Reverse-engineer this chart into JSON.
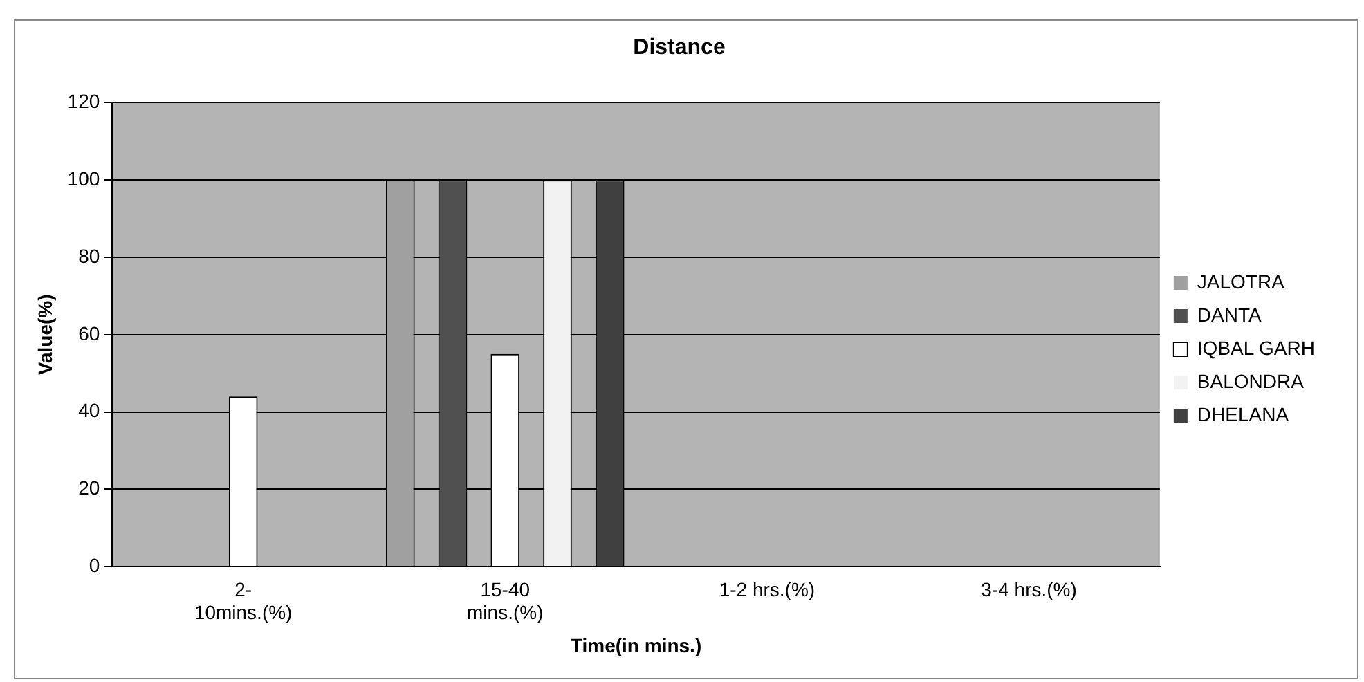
{
  "chart_data": {
    "type": "bar",
    "title": "Distance",
    "xlabel": "Time(in mins.)",
    "ylabel": "Value(%)",
    "categories": [
      "2-\n10mins.(%)",
      "15-40\nmins.(%)",
      "1-2 hrs.(%)",
      "3-4 hrs.(%)"
    ],
    "series": [
      {
        "name": "JALOTRA",
        "color": "#a0a0a0",
        "values": [
          0,
          100,
          0,
          0
        ]
      },
      {
        "name": "DANTA",
        "color": "#505050",
        "values": [
          0,
          100,
          0,
          0
        ]
      },
      {
        "name": "IQBAL GARH",
        "color": "#ffffff",
        "values": [
          44,
          55,
          0,
          0
        ]
      },
      {
        "name": "BALONDRA",
        "color": "#f2f2f2",
        "values": [
          0,
          100,
          0,
          0
        ]
      },
      {
        "name": "DHELANA",
        "color": "#404040",
        "values": [
          0,
          100,
          0,
          0
        ]
      }
    ],
    "ylim": [
      0,
      120
    ],
    "yticks": [
      0,
      20,
      40,
      60,
      80,
      100,
      120
    ],
    "grid": "y",
    "legend": "right"
  }
}
